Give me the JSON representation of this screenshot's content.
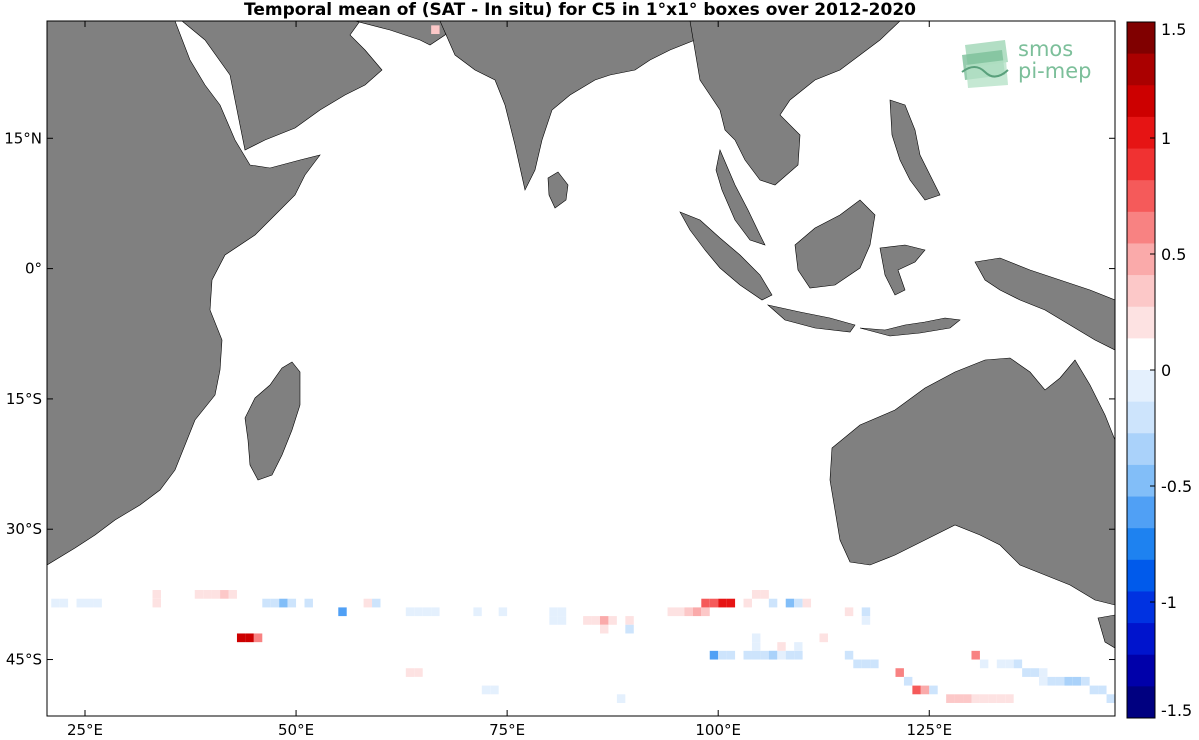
{
  "title": "Temporal mean of (SAT - In situ) for C5 in 1°x1° boxes over 2012-2020",
  "logo": {
    "line1": "smos",
    "line2": "pi-mep",
    "color": "#7cbf9a"
  },
  "colors": {
    "land": "#808080",
    "ocean": "#ffffff",
    "coast": "#000000"
  },
  "chart_data": {
    "type": "heatmap",
    "projection": "equirectangular",
    "lon_range": [
      20.5,
      147
    ],
    "lat_range": [
      -51.5,
      28.5
    ],
    "x_ticks": [
      {
        "value": 25,
        "label": "25°E"
      },
      {
        "value": 50,
        "label": "50°E"
      },
      {
        "value": 75,
        "label": "75°E"
      },
      {
        "value": 100,
        "label": "100°E"
      },
      {
        "value": 125,
        "label": "125°E"
      }
    ],
    "y_ticks": [
      {
        "value": 15,
        "label": "15°N"
      },
      {
        "value": 0,
        "label": "0°"
      },
      {
        "value": -15,
        "label": "15°S"
      },
      {
        "value": -30,
        "label": "30°S"
      },
      {
        "value": -45,
        "label": "45°S"
      }
    ],
    "colorbar": {
      "range": [
        -1.5,
        1.5
      ],
      "levels": 22,
      "ticks": [
        {
          "value": 1.5,
          "label": "1.5"
        },
        {
          "value": 1,
          "label": "1"
        },
        {
          "value": 0.5,
          "label": "0.5"
        },
        {
          "value": 0,
          "label": "0"
        },
        {
          "value": -0.5,
          "label": "-0.5"
        },
        {
          "value": -1,
          "label": "-1"
        },
        {
          "value": -1.5,
          "label": "-1.5"
        }
      ]
    },
    "cells": [
      [
        66,
        27,
        0.3
      ],
      [
        21,
        -39,
        -0.1
      ],
      [
        22,
        -39,
        -0.1
      ],
      [
        24,
        -39,
        -0.1
      ],
      [
        25,
        -39,
        -0.1
      ],
      [
        26,
        -39,
        -0.1
      ],
      [
        33,
        -38,
        0.15
      ],
      [
        33,
        -39,
        0.15
      ],
      [
        38,
        -38,
        0.15
      ],
      [
        39,
        -38,
        0.2
      ],
      [
        40,
        -38,
        0.15
      ],
      [
        41,
        -38,
        0.3
      ],
      [
        42,
        -38,
        0.2
      ],
      [
        44,
        -38,
        0.1
      ],
      [
        46,
        -39,
        -0.15
      ],
      [
        47,
        -39,
        -0.15
      ],
      [
        48,
        -39,
        -0.45
      ],
      [
        49,
        -39,
        -0.15
      ],
      [
        51,
        -39,
        -0.2
      ],
      [
        55,
        -40,
        -0.55
      ],
      [
        58,
        -39,
        0.15
      ],
      [
        59,
        -39,
        -0.15
      ],
      [
        59,
        -41,
        0.1
      ],
      [
        63,
        -40,
        -0.1
      ],
      [
        64,
        -40,
        -0.1
      ],
      [
        65,
        -40,
        -0.1
      ],
      [
        66,
        -40,
        -0.1
      ],
      [
        71,
        -40,
        -0.1
      ],
      [
        74,
        -40,
        -0.1
      ],
      [
        80,
        -40,
        -0.1
      ],
      [
        81,
        -40,
        -0.1
      ],
      [
        80,
        -41,
        -0.1
      ],
      [
        81,
        -41,
        -0.1
      ],
      [
        83,
        -41,
        0.1
      ],
      [
        84,
        -41,
        0.2
      ],
      [
        85,
        -41,
        0.25
      ],
      [
        86,
        -41,
        0.5
      ],
      [
        86,
        -42,
        0.15
      ],
      [
        87,
        -41,
        0.15
      ],
      [
        89,
        -41,
        0.15
      ],
      [
        89,
        -42,
        -0.15
      ],
      [
        94,
        -40,
        0.25
      ],
      [
        95,
        -40,
        0.25
      ],
      [
        96,
        -40,
        0.35
      ],
      [
        97,
        -40,
        0.45
      ],
      [
        98,
        -40,
        0.3
      ],
      [
        98,
        -39,
        0.7
      ],
      [
        99,
        -39,
        0.8
      ],
      [
        100,
        -39,
        1.0
      ],
      [
        101,
        -39,
        1.0
      ],
      [
        104,
        -38,
        0.25
      ],
      [
        105,
        -38,
        0.25
      ],
      [
        103,
        -39,
        0.2
      ],
      [
        106,
        -39,
        -0.2
      ],
      [
        108,
        -39,
        -0.45
      ],
      [
        109,
        -39,
        -0.2
      ],
      [
        110,
        -39,
        0.15
      ],
      [
        115,
        -40,
        0.15
      ],
      [
        117,
        -40,
        -0.15
      ],
      [
        117,
        -41,
        -0.1
      ],
      [
        43,
        -43,
        1.2
      ],
      [
        44,
        -43,
        1.1
      ],
      [
        45,
        -43,
        0.6
      ],
      [
        99,
        -45,
        -0.55
      ],
      [
        100,
        -45,
        -0.25
      ],
      [
        101,
        -45,
        -0.25
      ],
      [
        103,
        -45,
        -0.15
      ],
      [
        104,
        -45,
        -0.15
      ],
      [
        105,
        -45,
        -0.15
      ],
      [
        106,
        -45,
        -0.15
      ],
      [
        104,
        -44,
        -0.1
      ],
      [
        106,
        -45,
        -0.3
      ],
      [
        107,
        -45,
        -0.1
      ],
      [
        108,
        -45,
        -0.15
      ],
      [
        109,
        -45,
        -0.2
      ],
      [
        104,
        -43,
        -0.1
      ],
      [
        107,
        -44,
        0.15
      ],
      [
        109,
        -44,
        -0.1
      ],
      [
        110,
        -44,
        0.1
      ],
      [
        112,
        -43,
        0.15
      ],
      [
        115,
        -45,
        -0.15
      ],
      [
        116,
        -46,
        -0.15
      ],
      [
        117,
        -46,
        -0.15
      ],
      [
        118,
        -46,
        -0.15
      ],
      [
        130,
        -45,
        0.6
      ],
      [
        131,
        -46,
        -0.1
      ],
      [
        133,
        -46,
        -0.1
      ],
      [
        134,
        -46,
        -0.1
      ],
      [
        135,
        -46,
        -0.2
      ],
      [
        136,
        -47,
        -0.15
      ],
      [
        137,
        -47,
        -0.15
      ],
      [
        138,
        -47,
        -0.1
      ],
      [
        139,
        -48,
        -0.15
      ],
      [
        140,
        -48,
        -0.2
      ],
      [
        141,
        -48,
        -0.3
      ],
      [
        142,
        -48,
        -0.3
      ],
      [
        143,
        -48,
        -0.2
      ],
      [
        144,
        -49,
        -0.25
      ],
      [
        145,
        -49,
        -0.15
      ],
      [
        146,
        -50,
        -0.15
      ],
      [
        63,
        -47,
        0.2
      ],
      [
        64,
        -47,
        0.2
      ],
      [
        64,
        -48,
        0.1
      ],
      [
        72,
        -49,
        -0.1
      ],
      [
        73,
        -49,
        -0.1
      ],
      [
        88,
        -50,
        -0.1
      ],
      [
        121,
        -47,
        0.6
      ],
      [
        122,
        -48,
        -0.15
      ],
      [
        123,
        -49,
        0.7
      ],
      [
        124,
        -49,
        0.5
      ],
      [
        125,
        -49,
        -0.2
      ],
      [
        127,
        -50,
        0.4
      ],
      [
        128,
        -50,
        0.35
      ],
      [
        129,
        -50,
        0.3
      ],
      [
        130,
        -50,
        0.2
      ],
      [
        131,
        -50,
        0.15
      ],
      [
        132,
        -50,
        0.15
      ],
      [
        133,
        -50,
        0.15
      ],
      [
        134,
        -50,
        0.15
      ],
      [
        138,
        -48,
        -0.1
      ]
    ]
  }
}
